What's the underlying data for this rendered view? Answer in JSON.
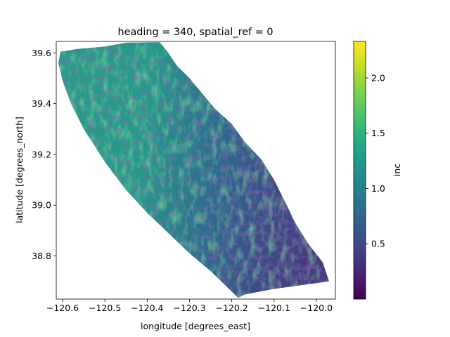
{
  "chart_data": {
    "type": "heatmap",
    "title": "heading = 340, spatial_ref = 0",
    "xlabel": "longitude [degrees_east]",
    "ylabel": "latitude [degrees_north]",
    "xlim": [
      -120.615,
      -119.955
    ],
    "ylim": [
      38.63,
      39.645
    ],
    "x_ticks": [
      -120.6,
      -120.5,
      -120.4,
      -120.3,
      -120.2,
      -120.1,
      -120.0
    ],
    "x_tick_labels": [
      "−120.6",
      "−120.5",
      "−120.4",
      "−120.3",
      "−120.2",
      "−120.1",
      "−120.0"
    ],
    "y_ticks": [
      38.8,
      39.0,
      39.2,
      39.4,
      39.6
    ],
    "y_tick_labels": [
      "38.8",
      "39.0",
      "39.2",
      "39.4",
      "39.6"
    ],
    "swath_polygon_lonlat": [
      [
        -120.605,
        39.605
      ],
      [
        -120.565,
        39.615
      ],
      [
        -120.5,
        39.625
      ],
      [
        -120.45,
        39.64
      ],
      [
        -120.37,
        39.642
      ],
      [
        -120.35,
        39.6
      ],
      [
        -120.33,
        39.55
      ],
      [
        -120.3,
        39.5
      ],
      [
        -120.27,
        39.44
      ],
      [
        -120.24,
        39.38
      ],
      [
        -120.2,
        39.32
      ],
      [
        -120.17,
        39.25
      ],
      [
        -120.13,
        39.18
      ],
      [
        -120.1,
        39.1
      ],
      [
        -120.07,
        39.0
      ],
      [
        -120.05,
        38.93
      ],
      [
        -120.02,
        38.85
      ],
      [
        -119.985,
        38.775
      ],
      [
        -119.97,
        38.7
      ],
      [
        -120.03,
        38.686
      ],
      [
        -120.1,
        38.67
      ],
      [
        -120.17,
        38.648
      ],
      [
        -120.185,
        38.635
      ],
      [
        -120.2,
        38.66
      ],
      [
        -120.25,
        38.74
      ],
      [
        -120.3,
        38.81
      ],
      [
        -120.35,
        38.89
      ],
      [
        -120.4,
        38.97
      ],
      [
        -120.45,
        39.06
      ],
      [
        -120.5,
        39.17
      ],
      [
        -120.55,
        39.3
      ],
      [
        -120.58,
        39.4
      ],
      [
        -120.6,
        39.49
      ],
      [
        -120.61,
        39.56
      ]
    ],
    "colorbar": {
      "label": "inc",
      "colormap": "viridis",
      "range": [
        0.0,
        2.33
      ],
      "ticks": [
        0.5,
        1.0,
        1.5,
        2.0
      ],
      "tick_labels": [
        "0.5",
        "1.0",
        "1.5",
        "2.0"
      ]
    },
    "colors": {
      "viridis_low": "#440154",
      "viridis_mid": "#21918c",
      "viridis_high": "#fde725"
    }
  }
}
